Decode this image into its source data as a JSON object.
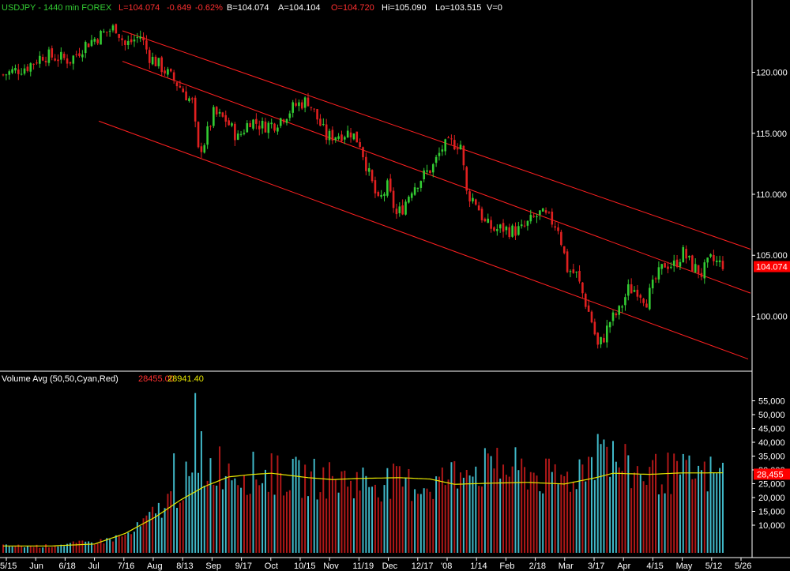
{
  "header": {
    "symbol": "USDJPY - 1440 min  FOREX",
    "last": "L=104.074",
    "change": "-0.649",
    "change_pct": "-0.62%",
    "bid": "B=104.074",
    "ask": "A=104.104",
    "open": "O=104.720",
    "high": "Hi=105.090",
    "low": "Lo=103.515",
    "volume": "V=0"
  },
  "volume_header": {
    "label": "Volume Avg (50,50,Cyan,Red)",
    "value1": "28455.00",
    "value2": "28941.40"
  },
  "colors": {
    "up": "#33cc33",
    "down": "#e02020",
    "channel": "#ff2020",
    "vol_up": "#40b8c8",
    "vol_down": "#b01818",
    "vol_avg": "#e8e800",
    "axis_text": "#ffffff",
    "price_tag_bg": "#ff0000"
  },
  "chart_data": [
    {
      "type": "candlestick",
      "title": "USDJPY - 1440 min  FOREX",
      "ylim": [
        95.5,
        124.5
      ],
      "y_ticks": [
        "120.000",
        "115.000",
        "110.000",
        "105.000",
        "100.000"
      ],
      "last_price_tag": "104.074",
      "x_ticks": [
        "5/15",
        "Jun",
        "6/18",
        "Jul",
        "7/16",
        "Aug",
        "8/13",
        "Sep",
        "9/17",
        "Oct",
        "10/15",
        "Nov",
        "11/19",
        "Dec",
        "12/17",
        "'08",
        "1/14",
        "Feb",
        "2/18",
        "Mar",
        "3/17",
        "Apr",
        "4/15",
        "May",
        "5/12",
        "5/26"
      ],
      "anchors": [
        [
          0,
          119.8
        ],
        [
          8,
          120.5
        ],
        [
          13,
          121.4
        ],
        [
          18,
          121.2
        ],
        [
          22,
          121.0
        ],
        [
          27,
          122.3
        ],
        [
          33,
          123.2
        ],
        [
          37,
          123.7
        ],
        [
          40,
          122.2
        ],
        [
          45,
          123.0
        ],
        [
          48,
          121.3
        ],
        [
          52,
          120.4
        ],
        [
          55,
          119.6
        ],
        [
          58,
          118.8
        ],
        [
          62,
          117.5
        ],
        [
          64,
          113.5
        ],
        [
          66,
          114.3
        ],
        [
          69,
          116.6
        ],
        [
          73,
          116.1
        ],
        [
          77,
          114.6
        ],
        [
          81,
          116.1
        ],
        [
          85,
          115.6
        ],
        [
          89,
          115.8
        ],
        [
          92,
          116.4
        ],
        [
          96,
          117.3
        ],
        [
          100,
          117.7
        ],
        [
          103,
          116.2
        ],
        [
          106,
          114.7
        ],
        [
          110,
          114.9
        ],
        [
          114,
          115.1
        ],
        [
          117,
          114.2
        ],
        [
          120,
          111.6
        ],
        [
          123,
          109.3
        ],
        [
          126,
          110.6
        ],
        [
          129,
          108.3
        ],
        [
          131,
          108.9
        ],
        [
          134,
          110.5
        ],
        [
          137,
          111.3
        ],
        [
          141,
          112.3
        ],
        [
          144,
          113.8
        ],
        [
          147,
          114.2
        ],
        [
          150,
          114.1
        ],
        [
          152,
          110.1
        ],
        [
          155,
          109.4
        ],
        [
          158,
          107.6
        ],
        [
          161,
          107.1
        ],
        [
          164,
          107.2
        ],
        [
          167,
          107.0
        ],
        [
          170,
          107.1
        ],
        [
          173,
          107.8
        ],
        [
          176,
          108.4
        ],
        [
          179,
          108.0
        ],
        [
          182,
          107.3
        ],
        [
          185,
          103.9
        ],
        [
          188,
          103.4
        ],
        [
          191,
          101.1
        ],
        [
          193,
          99.6
        ],
        [
          195,
          97.5
        ],
        [
          197,
          98.3
        ],
        [
          199,
          99.6
        ],
        [
          202,
          100.4
        ],
        [
          205,
          102.2
        ],
        [
          208,
          102.2
        ],
        [
          211,
          101.3
        ],
        [
          214,
          103.0
        ],
        [
          217,
          104.3
        ],
        [
          220,
          104.2
        ],
        [
          223,
          105.2
        ],
        [
          226,
          104.1
        ],
        [
          229,
          103.5
        ],
        [
          232,
          104.6
        ],
        [
          235,
          104.3
        ]
      ]
    },
    {
      "type": "bar",
      "title": "Volume Avg (50,50,Cyan,Red)",
      "ylim": [
        0,
        60000
      ],
      "y_ticks": [
        "55,000",
        "50,000",
        "45,000",
        "40,000",
        "35,000",
        "30,000",
        "25,000",
        "20,000",
        "15,000",
        "10,000"
      ],
      "last_value_tag": "28,455",
      "anchors": [
        [
          0,
          2500
        ],
        [
          14,
          2500
        ],
        [
          32,
          4200
        ],
        [
          42,
          7000
        ],
        [
          52,
          17000
        ],
        [
          60,
          26000
        ],
        [
          70,
          33000
        ],
        [
          78,
          30000
        ],
        [
          95,
          28000
        ],
        [
          112,
          27000
        ],
        [
          128,
          26000
        ],
        [
          140,
          25000
        ],
        [
          150,
          30000
        ],
        [
          160,
          32000
        ],
        [
          172,
          30000
        ],
        [
          180,
          27000
        ],
        [
          186,
          28000
        ],
        [
          196,
          38000
        ],
        [
          206,
          30000
        ],
        [
          225,
          29000
        ],
        [
          236,
          29000
        ]
      ],
      "avg_anchors": [
        [
          0,
          2500
        ],
        [
          16,
          2500
        ],
        [
          30,
          3200
        ],
        [
          40,
          7000
        ],
        [
          50,
          13000
        ],
        [
          58,
          19000
        ],
        [
          66,
          24000
        ],
        [
          74,
          27500
        ],
        [
          82,
          28400
        ],
        [
          88,
          28800
        ],
        [
          100,
          27200
        ],
        [
          108,
          26500
        ],
        [
          116,
          26900
        ],
        [
          130,
          27200
        ],
        [
          140,
          26700
        ],
        [
          148,
          24800
        ],
        [
          160,
          25200
        ],
        [
          172,
          25500
        ],
        [
          184,
          24900
        ],
        [
          194,
          27100
        ],
        [
          200,
          28800
        ],
        [
          212,
          28400
        ],
        [
          222,
          28900
        ],
        [
          236,
          28941
        ]
      ],
      "spikes": [
        [
          63,
          57800
        ],
        [
          65,
          44000
        ],
        [
          56,
          36000
        ],
        [
          60,
          33000
        ],
        [
          88,
          36000
        ],
        [
          160,
          35000
        ],
        [
          162,
          38000
        ],
        [
          195,
          43000
        ],
        [
          197,
          41000
        ],
        [
          230,
          33000
        ],
        [
          152,
          30000
        ],
        [
          153,
          28000
        ]
      ]
    }
  ]
}
